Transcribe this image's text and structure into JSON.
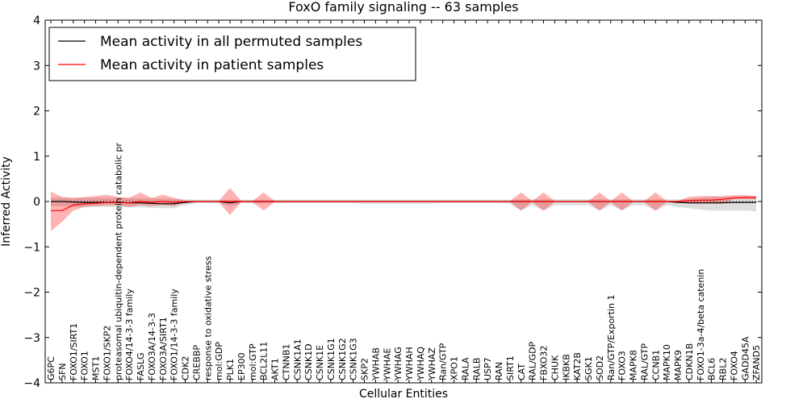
{
  "chart_data": {
    "type": "line",
    "title": "FoxO family signaling -- 63 samples",
    "xlabel": "Cellular Entities",
    "ylabel": "Inferred Activity",
    "ylim": [
      -4,
      4
    ],
    "yticks": [
      4,
      3,
      2,
      1,
      0,
      -1,
      -2,
      -3,
      -4
    ],
    "ytick_labels": [
      "4",
      "3",
      "2",
      "1",
      "0",
      "−1",
      "−2",
      "−3",
      "−4"
    ],
    "legend": {
      "placement": "top-left",
      "entries": [
        {
          "label": "Mean activity in all permuted samples",
          "color": "#000000"
        },
        {
          "label": "Mean activity in patient samples",
          "color": "#ff0000"
        }
      ]
    },
    "categories": [
      "G6PC",
      "SFN",
      "FOXO1/SIRT1",
      "FOXO1",
      "MST1",
      "FOXO1/SKP2",
      "proteasomal ubiquitin-dependent protein catabolic pr",
      "FOXO4/14-3-3 family",
      "FASLG",
      "FOXO3A/14-3-3",
      "FOXO3A/SIRT1",
      "FOXO1/14-3-3 family",
      "CDK2",
      "CREBBP",
      "response to oxidative stress",
      "mol:GDP",
      "PLK1",
      "EP300",
      "mol:GTP",
      "BCL2L11",
      "AKT1",
      "CTNNB1",
      "CSNK1A1",
      "CSNK1D",
      "CSNK1E",
      "CSNK1G1",
      "CSNK1G2",
      "CSNK1G3",
      "SKP2",
      "YWHAB",
      "YWHAE",
      "YWHAG",
      "YWHAH",
      "YWHAQ",
      "YWHAZ",
      "Ran/GTP",
      "XPO1",
      "RALA",
      "RALB",
      "USP7",
      "RAN",
      "SIRT1",
      "CAT",
      "RAL/GDP",
      "FBXO32",
      "CHUK",
      "IKBKB",
      "KAT2B",
      "SGK1",
      "SOD2",
      "Ran/GTP/Exportin 1",
      "FOXO3",
      "MAPK8",
      "RAL/GTP",
      "CCNB1",
      "MAPK10",
      "MAPK9",
      "CDKN1B",
      "FOXO1-3a-4/beta catenin",
      "BCL6",
      "RBL2",
      "FOXO4",
      "GADD45A",
      "ZFAND5"
    ],
    "series": [
      {
        "name": "Mean activity in all permuted samples",
        "color": "#000000",
        "values": [
          0.0,
          0.0,
          -0.01,
          -0.02,
          -0.02,
          -0.02,
          -0.02,
          -0.03,
          -0.03,
          -0.04,
          -0.05,
          -0.05,
          -0.02,
          0.0,
          0.0,
          0.0,
          -0.03,
          0.0,
          0.0,
          0.0,
          0.0,
          0.0,
          0.0,
          0.0,
          0.0,
          0.0,
          0.0,
          0.0,
          0.0,
          0.0,
          0.0,
          0.0,
          0.0,
          0.0,
          0.0,
          0.0,
          0.0,
          0.0,
          0.0,
          0.0,
          0.0,
          0.0,
          0.0,
          0.0,
          0.0,
          0.0,
          0.0,
          0.0,
          0.0,
          0.0,
          0.0,
          0.0,
          0.0,
          0.0,
          0.0,
          0.0,
          -0.02,
          -0.03,
          -0.03,
          -0.03,
          -0.03,
          -0.02,
          -0.02,
          -0.02
        ],
        "band_lower": [
          -0.1,
          -0.1,
          -0.12,
          -0.12,
          -0.12,
          -0.12,
          -0.12,
          -0.13,
          -0.13,
          -0.14,
          -0.15,
          -0.15,
          -0.08,
          -0.04,
          -0.04,
          -0.04,
          -0.1,
          -0.04,
          -0.04,
          -0.04,
          -0.04,
          -0.04,
          -0.04,
          -0.04,
          -0.04,
          -0.04,
          -0.04,
          -0.04,
          -0.05,
          -0.05,
          -0.05,
          -0.05,
          -0.05,
          -0.05,
          -0.05,
          -0.04,
          -0.04,
          -0.04,
          -0.04,
          -0.04,
          -0.04,
          -0.05,
          -0.2,
          -0.08,
          -0.2,
          -0.08,
          -0.08,
          -0.08,
          -0.08,
          -0.2,
          -0.08,
          -0.2,
          -0.08,
          -0.08,
          -0.2,
          -0.08,
          -0.12,
          -0.15,
          -0.18,
          -0.2,
          -0.2,
          -0.2,
          -0.2,
          -0.22
        ],
        "band_upper": [
          0.08,
          0.08,
          0.08,
          0.08,
          0.08,
          0.08,
          0.08,
          0.08,
          0.07,
          0.07,
          0.06,
          0.06,
          0.05,
          0.04,
          0.04,
          0.04,
          0.04,
          0.04,
          0.04,
          0.04,
          0.04,
          0.04,
          0.04,
          0.04,
          0.04,
          0.04,
          0.04,
          0.04,
          0.04,
          0.04,
          0.04,
          0.04,
          0.04,
          0.04,
          0.04,
          0.04,
          0.04,
          0.04,
          0.04,
          0.04,
          0.04,
          0.04,
          0.05,
          0.05,
          0.05,
          0.05,
          0.05,
          0.05,
          0.05,
          0.05,
          0.05,
          0.05,
          0.05,
          0.05,
          0.05,
          0.05,
          0.05,
          0.06,
          0.08,
          0.1,
          0.1,
          0.1,
          0.1,
          0.1
        ]
      },
      {
        "name": "Mean activity in patient samples",
        "color": "#ff0000",
        "values": [
          -0.2,
          -0.2,
          -0.08,
          -0.05,
          -0.04,
          -0.02,
          -0.02,
          -0.03,
          0.0,
          -0.02,
          0.0,
          -0.02,
          0.0,
          0.0,
          0.0,
          0.0,
          0.0,
          0.0,
          0.0,
          0.0,
          0.0,
          0.0,
          0.0,
          0.0,
          0.0,
          0.0,
          0.0,
          0.0,
          0.0,
          0.0,
          0.0,
          0.0,
          0.0,
          0.0,
          0.0,
          0.0,
          0.0,
          0.0,
          0.0,
          0.0,
          0.0,
          0.0,
          0.0,
          0.0,
          0.0,
          0.0,
          0.0,
          0.0,
          0.0,
          0.0,
          0.0,
          0.0,
          0.0,
          0.0,
          0.0,
          0.0,
          0.0,
          0.02,
          0.03,
          0.03,
          0.05,
          0.08,
          0.09,
          0.09
        ],
        "band_lower": [
          -0.65,
          -0.45,
          -0.2,
          -0.12,
          -0.1,
          -0.08,
          -0.08,
          -0.12,
          -0.08,
          -0.1,
          -0.08,
          -0.1,
          -0.02,
          -0.01,
          -0.01,
          -0.01,
          -0.3,
          -0.01,
          -0.01,
          -0.2,
          -0.01,
          -0.01,
          -0.01,
          -0.01,
          -0.01,
          -0.01,
          -0.01,
          -0.01,
          -0.01,
          -0.01,
          -0.01,
          -0.01,
          -0.01,
          -0.01,
          -0.01,
          -0.01,
          -0.01,
          -0.01,
          -0.01,
          -0.01,
          -0.01,
          -0.01,
          -0.2,
          -0.01,
          -0.2,
          -0.01,
          -0.01,
          -0.01,
          -0.01,
          -0.2,
          -0.01,
          -0.2,
          -0.01,
          -0.01,
          -0.2,
          -0.01,
          -0.01,
          -0.05,
          -0.05,
          -0.05,
          -0.05,
          0.05,
          0.05,
          0.05
        ],
        "band_upper": [
          0.22,
          0.1,
          0.08,
          0.1,
          0.12,
          0.15,
          0.1,
          0.08,
          0.2,
          0.08,
          0.15,
          0.08,
          0.02,
          0.01,
          0.01,
          0.01,
          0.3,
          0.01,
          0.01,
          0.2,
          0.01,
          0.01,
          0.01,
          0.01,
          0.01,
          0.01,
          0.01,
          0.01,
          0.01,
          0.01,
          0.01,
          0.01,
          0.01,
          0.01,
          0.01,
          0.01,
          0.01,
          0.01,
          0.01,
          0.01,
          0.01,
          0.01,
          0.2,
          0.01,
          0.2,
          0.01,
          0.01,
          0.01,
          0.01,
          0.2,
          0.01,
          0.2,
          0.01,
          0.01,
          0.2,
          0.01,
          0.02,
          0.1,
          0.12,
          0.12,
          0.12,
          0.14,
          0.14,
          0.12
        ]
      }
    ]
  }
}
